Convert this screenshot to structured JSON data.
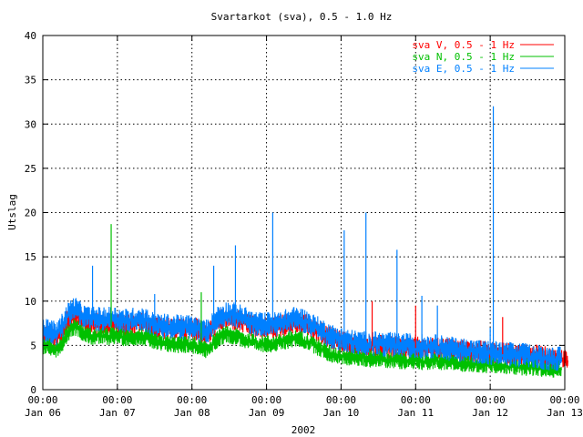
{
  "chart_data": {
    "type": "line",
    "title": "Svartarkot (sva), 0.5 - 1.0 Hz",
    "xlabel": "2002",
    "ylabel": "Utslag",
    "ylim": [
      0,
      40
    ],
    "yticks": [
      0,
      5,
      10,
      15,
      20,
      25,
      30,
      35,
      40
    ],
    "xlim": [
      "2002-01-06 00:00",
      "2002-01-13 00:00"
    ],
    "xticks": [
      {
        "time": "00:00",
        "date": "Jan 06"
      },
      {
        "time": "00:00",
        "date": "Jan 07"
      },
      {
        "time": "00:00",
        "date": "Jan 08"
      },
      {
        "time": "00:00",
        "date": "Jan 09"
      },
      {
        "time": "00:00",
        "date": "Jan 10"
      },
      {
        "time": "00:00",
        "date": "Jan 11"
      },
      {
        "time": "00:00",
        "date": "Jan 12"
      },
      {
        "time": "00:00",
        "date": "Jan 13"
      }
    ],
    "grid": true,
    "legend_position": "top-right",
    "x_step_hours": 1,
    "series": [
      {
        "name": "sva V, 0.5 - 1 Hz",
        "color": "#ff0000",
        "values": [
          6.0,
          6.1,
          6.0,
          5.9,
          5.7,
          5.9,
          6.4,
          7.0,
          7.7,
          8.3,
          8.5,
          8.4,
          8.0,
          7.7,
          7.5,
          7.4,
          7.4,
          7.5,
          7.5,
          7.4,
          7.4,
          7.5,
          7.6,
          7.6,
          7.5,
          7.4,
          7.3,
          7.3,
          7.3,
          7.4,
          7.5,
          7.6,
          7.6,
          7.5,
          7.3,
          7.1,
          6.9,
          6.9,
          6.9,
          6.9,
          6.9,
          6.9,
          6.9,
          6.9,
          6.9,
          6.9,
          6.9,
          6.9,
          6.9,
          6.9,
          6.7,
          6.5,
          6.3,
          6.3,
          6.6,
          7.1,
          7.5,
          7.8,
          8.0,
          8.1,
          8.1,
          8.0,
          7.9,
          7.8,
          7.7,
          7.5,
          7.4,
          7.2,
          7.1,
          7.0,
          7.0,
          7.0,
          7.0,
          7.0,
          7.0,
          7.0,
          7.1,
          7.2,
          7.3,
          7.4,
          7.5,
          7.6,
          7.6,
          7.5,
          7.4,
          7.3,
          7.1,
          6.9,
          6.7,
          6.5,
          6.3,
          6.1,
          5.9,
          5.8,
          5.6,
          5.5,
          5.4,
          5.3,
          5.2,
          5.1,
          5.1,
          5.0,
          5.0,
          5.0,
          4.9,
          4.9,
          4.9,
          4.9,
          4.9,
          4.9,
          4.9,
          4.8,
          4.8,
          4.8,
          4.7,
          4.7,
          4.7,
          4.7,
          4.7,
          4.7,
          4.7,
          4.7,
          4.7,
          4.6,
          4.6,
          4.6,
          4.6,
          4.6,
          4.6,
          4.6,
          4.6,
          4.6,
          4.6,
          4.5,
          4.4,
          4.4,
          4.4,
          4.3,
          4.3,
          4.3,
          4.3,
          4.3,
          4.2,
          4.2,
          4.2,
          4.1,
          4.1,
          4.1,
          4.0,
          4.0,
          4.0,
          4.0,
          3.9,
          3.9,
          3.9,
          3.8,
          3.8,
          3.8,
          3.8,
          3.8,
          3.8,
          3.7,
          3.6,
          3.5,
          3.5,
          3.4,
          3.4,
          3.3,
          3.3,
          3.3
        ]
      },
      {
        "name": "sva N, 0.5 - 1 Hz",
        "color": "#00c000",
        "values": [
          4.8,
          5.0,
          4.9,
          4.8,
          4.6,
          4.8,
          5.2,
          5.8,
          6.4,
          6.9,
          7.1,
          7.0,
          6.7,
          6.4,
          6.2,
          6.1,
          6.0,
          6.0,
          6.0,
          6.0,
          6.0,
          6.0,
          6.1,
          6.1,
          6.1,
          6.0,
          5.9,
          5.9,
          5.9,
          6.0,
          6.0,
          6.0,
          6.0,
          5.9,
          5.8,
          5.6,
          5.4,
          5.2,
          5.2,
          5.2,
          5.2,
          5.1,
          5.1,
          5.1,
          5.1,
          5.1,
          5.1,
          5.1,
          5.0,
          5.0,
          4.8,
          4.6,
          4.5,
          4.6,
          4.9,
          5.3,
          5.6,
          5.9,
          6.1,
          6.2,
          6.2,
          6.1,
          6.0,
          5.9,
          5.8,
          5.6,
          5.5,
          5.4,
          5.3,
          5.2,
          5.2,
          5.2,
          5.2,
          5.2,
          5.2,
          5.2,
          5.3,
          5.4,
          5.5,
          5.6,
          5.7,
          5.8,
          5.8,
          5.7,
          5.6,
          5.5,
          5.3,
          5.1,
          4.9,
          4.7,
          4.5,
          4.3,
          4.1,
          4.0,
          3.9,
          3.9,
          3.8,
          3.8,
          3.7,
          3.7,
          3.7,
          3.6,
          3.6,
          3.6,
          3.5,
          3.5,
          3.5,
          3.5,
          3.5,
          3.5,
          3.4,
          3.4,
          3.4,
          3.4,
          3.3,
          3.3,
          3.3,
          3.3,
          3.3,
          3.3,
          3.3,
          3.3,
          3.2,
          3.2,
          3.2,
          3.2,
          3.2,
          3.2,
          3.2,
          3.2,
          3.1,
          3.1,
          3.1,
          3.0,
          3.0,
          3.0,
          3.0,
          3.0,
          2.9,
          2.9,
          2.9,
          2.9,
          2.8,
          2.8,
          2.8,
          2.8,
          2.7,
          2.7,
          2.7,
          2.7,
          2.6,
          2.6,
          2.6,
          2.6,
          2.6,
          2.6,
          2.5,
          2.5,
          2.5,
          2.4,
          2.4,
          2.4,
          2.3,
          2.3,
          2.3,
          2.3,
          2.3,
          2.3
        ]
      },
      {
        "name": "sva E, 0.5 - 1 Hz",
        "color": "#0080ff",
        "values": [
          6.5,
          6.8,
          6.7,
          6.5,
          6.3,
          6.5,
          7.1,
          7.8,
          8.4,
          8.9,
          9.1,
          9.0,
          8.6,
          8.3,
          8.1,
          8.0,
          8.0,
          8.0,
          8.0,
          7.9,
          7.9,
          8.0,
          8.1,
          8.1,
          8.0,
          7.9,
          7.8,
          7.8,
          7.8,
          7.9,
          8.0,
          8.0,
          8.0,
          7.9,
          7.7,
          7.5,
          7.3,
          7.2,
          7.2,
          7.2,
          7.2,
          7.1,
          7.1,
          7.1,
          7.1,
          7.1,
          7.1,
          7.1,
          7.0,
          7.0,
          6.8,
          6.6,
          6.5,
          6.6,
          7.0,
          7.6,
          8.0,
          8.3,
          8.5,
          8.6,
          8.6,
          8.5,
          8.4,
          8.3,
          8.2,
          8.0,
          7.8,
          7.6,
          7.5,
          7.4,
          7.4,
          7.4,
          7.4,
          7.4,
          7.4,
          7.4,
          7.5,
          7.6,
          7.7,
          7.8,
          7.9,
          8.0,
          8.0,
          7.9,
          7.8,
          7.6,
          7.4,
          7.2,
          7.0,
          6.8,
          6.6,
          6.4,
          6.2,
          6.0,
          5.9,
          5.8,
          5.7,
          5.6,
          5.5,
          5.4,
          5.4,
          5.3,
          5.3,
          5.3,
          5.2,
          5.2,
          5.2,
          5.2,
          5.2,
          5.2,
          5.1,
          5.1,
          5.1,
          5.1,
          5.0,
          5.0,
          5.0,
          5.0,
          5.0,
          5.0,
          4.9,
          4.9,
          4.9,
          4.9,
          4.9,
          4.9,
          4.9,
          4.8,
          4.8,
          4.8,
          4.7,
          4.6,
          4.6,
          4.5,
          4.5,
          4.5,
          4.4,
          4.4,
          4.4,
          4.3,
          4.3,
          4.3,
          4.2,
          4.2,
          4.2,
          4.1,
          4.1,
          4.1,
          4.0,
          4.0,
          4.0,
          4.0,
          3.9,
          3.9,
          3.9,
          3.9,
          3.8,
          3.8,
          3.7,
          3.7,
          3.7,
          3.6,
          3.6,
          3.5,
          3.5,
          3.5,
          3.5,
          3.5
        ]
      }
    ],
    "spikes": [
      {
        "series": 2,
        "x": "2002-01-06 16:00",
        "y": 14.0
      },
      {
        "series": 1,
        "x": "2002-01-06 22:00",
        "y": 18.7
      },
      {
        "series": 2,
        "x": "2002-01-07 12:00",
        "y": 10.8
      },
      {
        "series": 1,
        "x": "2002-01-08 03:00",
        "y": 11.0
      },
      {
        "series": 2,
        "x": "2002-01-08 07:00",
        "y": 14.0
      },
      {
        "series": 2,
        "x": "2002-01-08 14:00",
        "y": 16.3
      },
      {
        "series": 2,
        "x": "2002-01-09 02:00",
        "y": 20.0
      },
      {
        "series": 2,
        "x": "2002-01-10 01:00",
        "y": 18.0
      },
      {
        "series": 2,
        "x": "2002-01-10 08:00",
        "y": 20.0
      },
      {
        "series": 0,
        "x": "2002-01-10 10:00",
        "y": 10.0
      },
      {
        "series": 2,
        "x": "2002-01-10 18:00",
        "y": 15.8
      },
      {
        "series": 0,
        "x": "2002-01-11 00:00",
        "y": 9.5
      },
      {
        "series": 2,
        "x": "2002-01-11 02:00",
        "y": 10.6
      },
      {
        "series": 2,
        "x": "2002-01-11 07:00",
        "y": 9.5
      },
      {
        "series": 2,
        "x": "2002-01-12 00:00",
        "y": 7.0
      },
      {
        "series": 2,
        "x": "2002-01-12 01:00",
        "y": 32.0
      },
      {
        "series": 0,
        "x": "2002-01-12 04:00",
        "y": 8.2
      }
    ]
  }
}
